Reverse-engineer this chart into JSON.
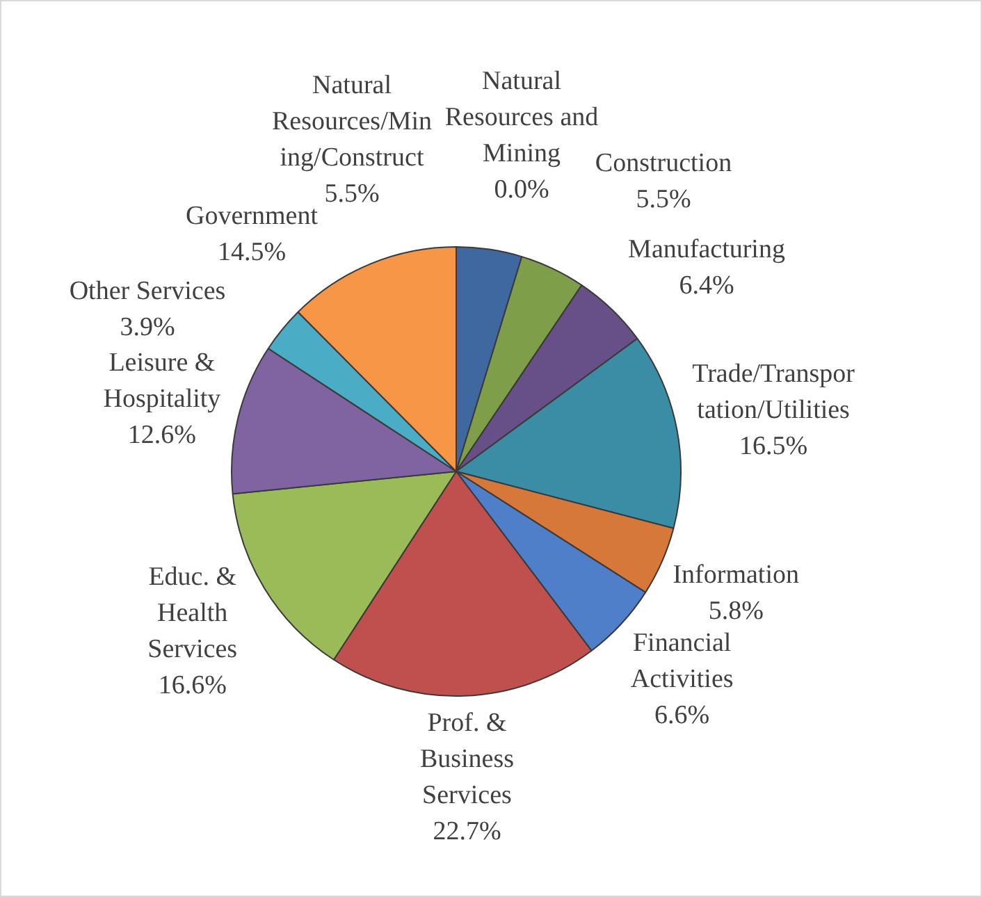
{
  "chart_data": {
    "type": "pie",
    "categories": [
      "Natural Resources/Mining/Construct",
      "Natural Resources and Mining",
      "Construction",
      "Manufacturing",
      "Trade/Transportation/Utilities",
      "Information",
      "Financial Activities",
      "Prof. & Business Services",
      "Educ. & Health Services",
      "Leisure & Hospitality",
      "Other Services",
      "Government"
    ],
    "values": [
      5.5,
      0.0,
      5.5,
      6.4,
      16.5,
      5.8,
      6.6,
      22.7,
      16.6,
      12.6,
      3.9,
      14.5
    ],
    "colors": [
      "#3f67a0",
      "#4f81bd",
      "#7f9e4a",
      "#674f88",
      "#3a8da5",
      "#d6783a",
      "#4f7fc9",
      "#c0504d",
      "#9bbb59",
      "#8064a2",
      "#4bacc6",
      "#f79646"
    ],
    "value_labels": [
      "5.5%",
      "0.0%",
      "5.5%",
      "6.4%",
      "16.5%",
      "5.8%",
      "6.6%",
      "22.7%",
      "16.6%",
      "12.6%",
      "3.9%",
      "14.5%"
    ],
    "legend": false
  }
}
